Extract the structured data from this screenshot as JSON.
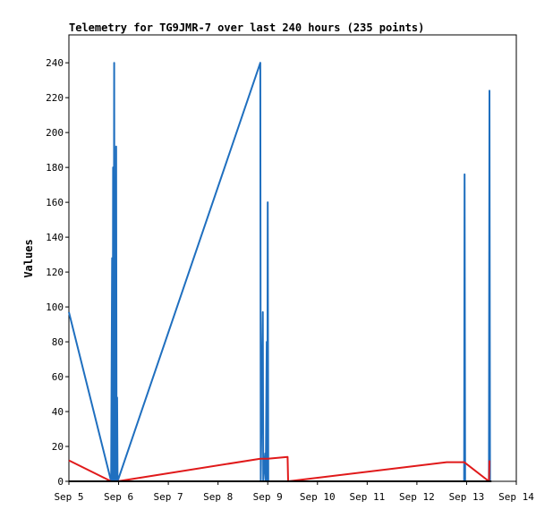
{
  "chart_data": {
    "type": "line",
    "title": "Telemetry for TG9JMR-7 over last 240 hours (235 points)",
    "xlabel": "",
    "ylabel": "Values",
    "x_tick_labels": [
      "Sep 5",
      "Sep 6",
      "Sep 7",
      "Sep 8",
      "Sep 9",
      "Sep 10",
      "Sep 11",
      "Sep 12",
      "Sep 13",
      "Sep 14"
    ],
    "y_ticks": [
      0,
      20,
      40,
      60,
      80,
      100,
      120,
      140,
      160,
      180,
      200,
      220,
      240
    ],
    "xlim_days": [
      5,
      14
    ],
    "ylim": [
      0,
      256
    ],
    "grid": false,
    "legend": "none",
    "series": [
      {
        "color": "#1f6fbf",
        "points": [
          [
            5.0,
            97
          ],
          [
            5.85,
            0
          ],
          [
            5.87,
            128
          ],
          [
            5.88,
            0
          ],
          [
            5.89,
            180
          ],
          [
            5.9,
            0
          ],
          [
            5.91,
            240
          ],
          [
            5.92,
            0
          ],
          [
            5.93,
            48
          ],
          [
            5.94,
            0
          ],
          [
            5.95,
            192
          ],
          [
            5.96,
            0
          ],
          [
            5.97,
            48
          ],
          [
            5.98,
            0
          ],
          [
            8.85,
            240
          ],
          [
            8.86,
            0
          ],
          [
            8.9,
            97
          ],
          [
            8.91,
            0
          ],
          [
            8.95,
            16
          ],
          [
            8.96,
            0
          ],
          [
            8.98,
            80
          ],
          [
            8.99,
            0
          ],
          [
            9.0,
            160
          ],
          [
            9.01,
            0
          ],
          [
            9.05,
            0
          ],
          [
            12.95,
            0
          ],
          [
            12.96,
            176
          ],
          [
            12.97,
            0
          ],
          [
            13.45,
            0
          ],
          [
            13.46,
            224
          ],
          [
            13.47,
            0
          ]
        ]
      },
      {
        "color": "#e0191a",
        "points": [
          [
            5.0,
            12
          ],
          [
            5.85,
            0
          ],
          [
            5.98,
            0
          ],
          [
            8.85,
            13
          ],
          [
            9.0,
            13
          ],
          [
            9.4,
            14
          ],
          [
            9.41,
            0
          ],
          [
            12.6,
            11
          ],
          [
            12.95,
            11
          ],
          [
            13.45,
            0
          ],
          [
            13.46,
            12
          ]
        ]
      },
      {
        "color": "#000000",
        "points": [
          [
            5.0,
            0
          ],
          [
            13.5,
            0
          ]
        ]
      }
    ]
  }
}
